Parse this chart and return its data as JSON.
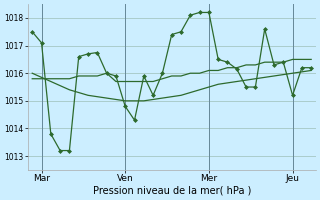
{
  "background_color": "#cceeff",
  "grid_color": "#aacccc",
  "line_color": "#2d6a2d",
  "marker_color": "#2d6a2d",
  "xlabel": "Pression niveau de la mer( hPa )",
  "ylim": [
    1012.5,
    1018.5
  ],
  "yticks": [
    1013,
    1014,
    1015,
    1016,
    1017,
    1018
  ],
  "xtick_labels": [
    "Mar",
    "Ven",
    "Mer",
    "Jeu"
  ],
  "xtick_positions": [
    1,
    10,
    19,
    28
  ],
  "vline_positions": [
    1,
    10,
    19,
    28
  ],
  "figsize": [
    3.2,
    2.0
  ],
  "dpi": 100,
  "series_jagged": [
    1017.5,
    1017.1,
    1013.8,
    1013.2,
    1013.2,
    1016.6,
    1016.7,
    1016.75,
    1016.0,
    1015.9,
    1014.8,
    1014.3,
    1015.9,
    1015.2,
    1016.0,
    1017.4,
    1017.5,
    1018.1,
    1018.2,
    1018.2,
    1016.5,
    1016.4,
    1016.15,
    1015.5,
    1015.5,
    1017.6,
    1016.3,
    1016.4,
    1015.2,
    1016.2,
    1016.2
  ],
  "series_smooth1": [
    1015.8,
    1015.8,
    1015.8,
    1015.8,
    1015.8,
    1015.9,
    1015.9,
    1015.9,
    1016.0,
    1015.7,
    1015.7,
    1015.7,
    1015.7,
    1015.7,
    1015.8,
    1015.9,
    1015.9,
    1016.0,
    1016.0,
    1016.1,
    1016.1,
    1016.2,
    1016.2,
    1016.3,
    1016.3,
    1016.4,
    1016.4,
    1016.4,
    1016.5,
    1016.5,
    1016.5
  ],
  "series_smooth2": [
    1016.0,
    1015.85,
    1015.7,
    1015.55,
    1015.4,
    1015.3,
    1015.2,
    1015.15,
    1015.1,
    1015.05,
    1015.0,
    1015.0,
    1015.0,
    1015.05,
    1015.1,
    1015.15,
    1015.2,
    1015.3,
    1015.4,
    1015.5,
    1015.6,
    1015.65,
    1015.7,
    1015.75,
    1015.8,
    1015.85,
    1015.9,
    1015.95,
    1016.0,
    1016.05,
    1016.1
  ]
}
